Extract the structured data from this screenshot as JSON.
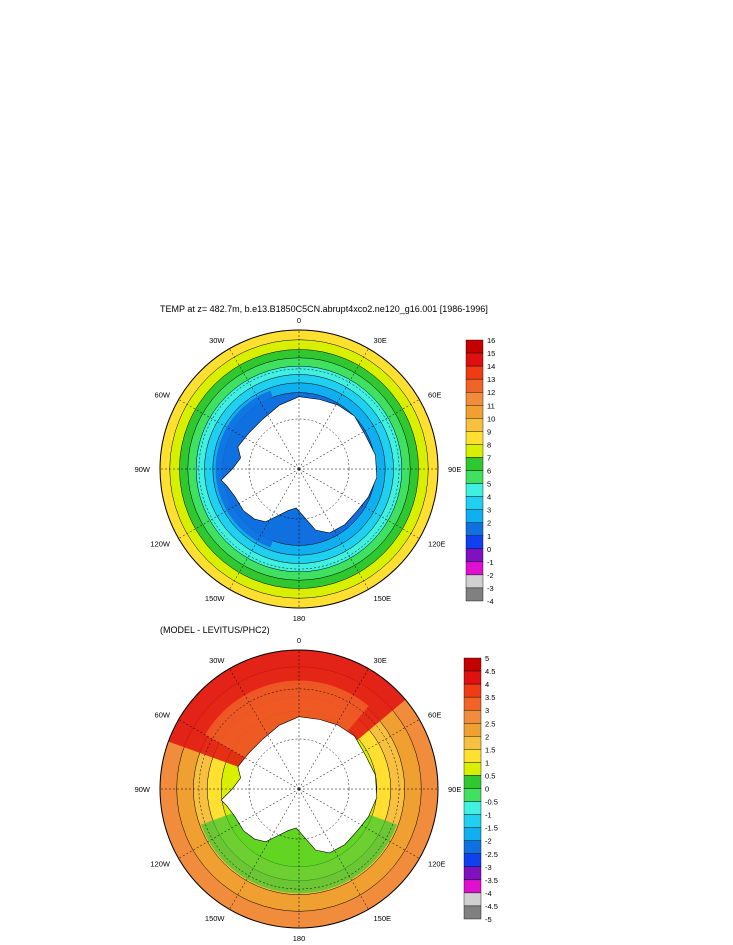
{
  "chart_data": [
    {
      "type": "heatmap",
      "projection": "south-polar-stereographic",
      "title": "TEMP at z= 482.7m, b.e13.B1850C5CN.abrupt4xco2.ne120_g16.001 [1986-1996]",
      "longitude_labels": [
        "0",
        "30E",
        "60E",
        "90E",
        "120E",
        "150E",
        "180",
        "150W",
        "120W",
        "90W",
        "60W",
        "30W"
      ],
      "colorbar": {
        "labels": [
          "16",
          "15",
          "14",
          "13",
          "12",
          "11",
          "10",
          "9",
          "8",
          "7",
          "6",
          "5",
          "4",
          "3",
          "2",
          "1",
          "0",
          "-1",
          "-2",
          "-3",
          "-4"
        ],
        "colors": [
          "#c40000",
          "#e01010",
          "#f03c14",
          "#f06428",
          "#f08c3c",
          "#f0a030",
          "#f8c040",
          "#ffe030",
          "#d8f000",
          "#30c830",
          "#40e060",
          "#40f0e0",
          "#20d0f0",
          "#10b0f0",
          "#1070e0",
          "#1040f0",
          "#8010c0",
          "#e010d0",
          "#d0d0d0",
          "#808080"
        ]
      },
      "rings": [
        {
          "r": 1.0,
          "color": "#ffe030"
        },
        {
          "r": 0.93,
          "color": "#d8f000"
        },
        {
          "r": 0.86,
          "color": "#30c830"
        },
        {
          "r": 0.8,
          "color": "#40e060"
        },
        {
          "r": 0.74,
          "color": "#40f0e0"
        },
        {
          "r": 0.68,
          "color": "#20d0f0"
        },
        {
          "r": 0.62,
          "color": "#10b0f0"
        },
        {
          "r": 0.55,
          "color": "#1070e0"
        }
      ]
    },
    {
      "type": "heatmap",
      "projection": "south-polar-stereographic",
      "title": "(MODEL - LEVITUS/PHC2)",
      "longitude_labels": [
        "0",
        "30E",
        "60E",
        "90E",
        "120E",
        "150E",
        "180",
        "150W",
        "120W",
        "90W",
        "60W",
        "30W"
      ],
      "colorbar": {
        "labels": [
          "5",
          "4.5",
          "4",
          "3.5",
          "3",
          "2.5",
          "2",
          "1.5",
          "1",
          "0.5",
          "0",
          "-0.5",
          "-1",
          "-1.5",
          "-2",
          "-2.5",
          "-3",
          "-3.5",
          "-4",
          "-4.5",
          "-5"
        ],
        "colors": [
          "#c40000",
          "#e01010",
          "#f03c14",
          "#f06428",
          "#f08c3c",
          "#f0a030",
          "#f8c040",
          "#ffe030",
          "#d8f000",
          "#30c830",
          "#40e060",
          "#40f0e0",
          "#20d0f0",
          "#10b0f0",
          "#1070e0",
          "#1040f0",
          "#8010c0",
          "#e010d0",
          "#d0d0d0",
          "#808080"
        ]
      },
      "rings": [
        {
          "r": 1.0,
          "color": "#f08c3c"
        },
        {
          "r": 0.88,
          "color": "#f0a030"
        },
        {
          "r": 0.76,
          "color": "#f8c040"
        },
        {
          "r": 0.66,
          "color": "#ffe030"
        },
        {
          "r": 0.56,
          "color": "#d8f000"
        }
      ]
    }
  ]
}
